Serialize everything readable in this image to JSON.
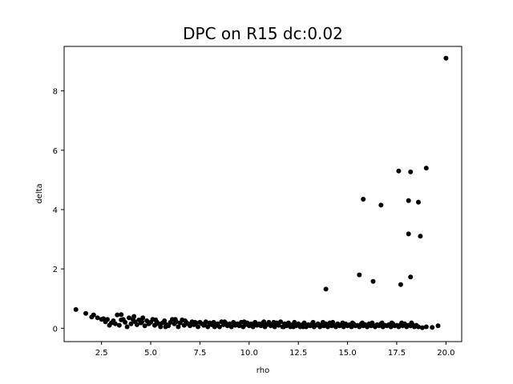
{
  "chart_data": {
    "type": "scatter",
    "title": "DPC on R15  dc:0.02",
    "xlabel": "rho",
    "ylabel": "delta",
    "xlim": [
      0.6,
      20.8
    ],
    "ylim": [
      -0.45,
      9.5
    ],
    "xticks": [
      2.5,
      5.0,
      7.5,
      10.0,
      12.5,
      15.0,
      17.5,
      20.0
    ],
    "xtick_labels": [
      "2.5",
      "5.0",
      "7.5",
      "10.0",
      "12.5",
      "15.0",
      "17.5",
      "20.0"
    ],
    "yticks": [
      0,
      2,
      4,
      6,
      8
    ],
    "ytick_labels": [
      "0",
      "2",
      "4",
      "6",
      "8"
    ],
    "grid": false,
    "marker_color": "#000000",
    "points": [
      [
        1.2,
        0.63
      ],
      [
        1.7,
        0.5
      ],
      [
        2.1,
        0.45
      ],
      [
        2.3,
        0.35
      ],
      [
        2.5,
        0.3
      ],
      [
        2.6,
        0.32
      ],
      [
        2.8,
        0.3
      ],
      [
        2.9,
        0.1
      ],
      [
        3.1,
        0.25
      ],
      [
        3.2,
        0.15
      ],
      [
        3.3,
        0.45
      ],
      [
        3.5,
        0.46
      ],
      [
        3.5,
        0.28
      ],
      [
        3.7,
        0.2
      ],
      [
        3.8,
        0.05
      ],
      [
        3.9,
        0.35
      ],
      [
        4.0,
        0.15
      ],
      [
        4.1,
        0.3
      ],
      [
        4.2,
        0.22
      ],
      [
        4.3,
        0.12
      ],
      [
        4.4,
        0.28
      ],
      [
        4.5,
        0.18
      ],
      [
        4.6,
        0.35
      ],
      [
        4.7,
        0.08
      ],
      [
        4.8,
        0.25
      ],
      [
        4.9,
        0.15
      ],
      [
        5.0,
        0.2
      ],
      [
        5.1,
        0.3
      ],
      [
        5.2,
        0.1
      ],
      [
        5.3,
        0.22
      ],
      [
        5.4,
        0.15
      ],
      [
        5.5,
        0.05
      ],
      [
        5.6,
        0.18
      ],
      [
        5.7,
        0.25
      ],
      [
        5.8,
        0.12
      ],
      [
        5.9,
        0.08
      ],
      [
        6.0,
        0.2
      ],
      [
        6.1,
        0.3
      ],
      [
        6.2,
        0.15
      ],
      [
        6.3,
        0.22
      ],
      [
        6.4,
        0.05
      ],
      [
        6.5,
        0.18
      ],
      [
        6.6,
        0.28
      ],
      [
        6.7,
        0.1
      ],
      [
        6.8,
        0.2
      ],
      [
        6.9,
        0.15
      ],
      [
        7.0,
        0.08
      ],
      [
        7.1,
        0.22
      ],
      [
        7.2,
        0.12
      ],
      [
        7.3,
        0.18
      ],
      [
        7.4,
        0.05
      ],
      [
        7.5,
        0.2
      ],
      [
        7.6,
        0.15
      ],
      [
        7.7,
        0.1
      ],
      [
        7.8,
        0.22
      ],
      [
        7.9,
        0.05
      ],
      [
        8.0,
        0.18
      ],
      [
        8.1,
        0.12
      ],
      [
        8.2,
        0.2
      ],
      [
        8.3,
        0.08
      ],
      [
        8.4,
        0.15
      ],
      [
        8.5,
        0.05
      ],
      [
        8.6,
        0.22
      ],
      [
        8.7,
        0.12
      ],
      [
        8.8,
        0.18
      ],
      [
        8.9,
        0.08
      ],
      [
        9.0,
        0.15
      ],
      [
        9.1,
        0.05
      ],
      [
        9.2,
        0.2
      ],
      [
        9.3,
        0.1
      ],
      [
        9.4,
        0.15
      ],
      [
        9.5,
        0.08
      ],
      [
        9.6,
        0.2
      ],
      [
        9.7,
        0.05
      ],
      [
        9.8,
        0.12
      ],
      [
        9.9,
        0.18
      ],
      [
        10.0,
        0.08
      ],
      [
        10.1,
        0.15
      ],
      [
        10.2,
        0.05
      ],
      [
        10.3,
        0.2
      ],
      [
        10.4,
        0.1
      ],
      [
        10.5,
        0.15
      ],
      [
        10.6,
        0.08
      ],
      [
        10.7,
        0.18
      ],
      [
        10.8,
        0.05
      ],
      [
        10.9,
        0.12
      ],
      [
        11.0,
        0.2
      ],
      [
        11.1,
        0.08
      ],
      [
        11.2,
        0.15
      ],
      [
        11.3,
        0.05
      ],
      [
        11.4,
        0.18
      ],
      [
        11.5,
        0.1
      ],
      [
        11.6,
        0.22
      ],
      [
        11.7,
        0.05
      ],
      [
        11.8,
        0.15
      ],
      [
        11.9,
        0.08
      ],
      [
        12.0,
        0.18
      ],
      [
        12.1,
        0.05
      ],
      [
        12.2,
        0.12
      ],
      [
        12.3,
        0.2
      ],
      [
        12.4,
        0.08
      ],
      [
        12.5,
        0.15
      ],
      [
        12.6,
        0.05
      ],
      [
        12.7,
        0.12
      ],
      [
        12.8,
        0.18
      ],
      [
        12.9,
        0.05
      ],
      [
        13.0,
        0.12
      ],
      [
        13.1,
        0.08
      ],
      [
        13.2,
        0.15
      ],
      [
        13.3,
        0.05
      ],
      [
        13.4,
        0.1
      ],
      [
        13.5,
        0.15
      ],
      [
        13.6,
        0.05
      ],
      [
        13.7,
        0.12
      ],
      [
        13.8,
        0.08
      ],
      [
        13.9,
        0.15
      ],
      [
        14.0,
        0.05
      ],
      [
        14.1,
        0.18
      ],
      [
        14.2,
        0.08
      ],
      [
        14.3,
        0.12
      ],
      [
        14.4,
        0.05
      ],
      [
        14.5,
        0.15
      ],
      [
        14.6,
        0.08
      ],
      [
        14.7,
        0.12
      ],
      [
        14.8,
        0.05
      ],
      [
        14.9,
        0.15
      ],
      [
        15.0,
        0.08
      ],
      [
        15.1,
        0.12
      ],
      [
        15.2,
        0.05
      ],
      [
        15.3,
        0.15
      ],
      [
        15.4,
        0.08
      ],
      [
        15.5,
        0.1
      ],
      [
        15.6,
        0.05
      ],
      [
        15.7,
        0.15
      ],
      [
        15.8,
        0.08
      ],
      [
        15.9,
        0.12
      ],
      [
        16.0,
        0.05
      ],
      [
        16.1,
        0.15
      ],
      [
        16.2,
        0.08
      ],
      [
        16.3,
        0.1
      ],
      [
        16.4,
        0.05
      ],
      [
        16.5,
        0.12
      ],
      [
        16.6,
        0.08
      ],
      [
        16.7,
        0.15
      ],
      [
        16.8,
        0.05
      ],
      [
        16.9,
        0.1
      ],
      [
        17.0,
        0.08
      ],
      [
        17.1,
        0.12
      ],
      [
        17.2,
        0.05
      ],
      [
        17.3,
        0.15
      ],
      [
        17.4,
        0.08
      ],
      [
        17.5,
        0.1
      ],
      [
        17.6,
        0.05
      ],
      [
        17.7,
        0.12
      ],
      [
        17.8,
        0.08
      ],
      [
        17.9,
        0.15
      ],
      [
        18.0,
        0.05
      ],
      [
        18.1,
        0.1
      ],
      [
        18.2,
        0.08
      ],
      [
        18.3,
        0.12
      ],
      [
        18.4,
        0.05
      ],
      [
        18.5,
        0.1
      ],
      [
        18.6,
        0.05
      ],
      [
        18.8,
        0.02
      ],
      [
        19.0,
        0.05
      ],
      [
        19.3,
        0.03
      ],
      [
        19.6,
        0.08
      ],
      [
        2.0,
        0.38
      ],
      [
        2.7,
        0.22
      ],
      [
        3.0,
        0.18
      ],
      [
        3.4,
        0.1
      ],
      [
        3.6,
        0.3
      ],
      [
        4.15,
        0.4
      ],
      [
        4.55,
        0.22
      ],
      [
        5.25,
        0.28
      ],
      [
        5.75,
        0.05
      ],
      [
        6.25,
        0.3
      ],
      [
        6.75,
        0.25
      ],
      [
        7.25,
        0.2
      ],
      [
        7.75,
        0.15
      ],
      [
        8.25,
        0.05
      ],
      [
        8.75,
        0.22
      ],
      [
        9.25,
        0.15
      ],
      [
        9.75,
        0.22
      ],
      [
        10.25,
        0.12
      ],
      [
        10.75,
        0.22
      ],
      [
        11.25,
        0.2
      ],
      [
        11.75,
        0.05
      ],
      [
        12.25,
        0.05
      ],
      [
        12.75,
        0.05
      ],
      [
        13.25,
        0.2
      ],
      [
        13.75,
        0.2
      ],
      [
        14.25,
        0.2
      ],
      [
        14.75,
        0.18
      ],
      [
        15.25,
        0.18
      ],
      [
        15.75,
        0.18
      ],
      [
        16.25,
        0.18
      ],
      [
        16.75,
        0.18
      ],
      [
        17.25,
        0.18
      ],
      [
        17.75,
        0.18
      ],
      [
        18.25,
        0.18
      ],
      [
        13.9,
        1.32
      ],
      [
        15.6,
        1.8
      ],
      [
        16.3,
        1.58
      ],
      [
        17.7,
        1.47
      ],
      [
        18.2,
        1.73
      ],
      [
        15.8,
        4.35
      ],
      [
        16.7,
        4.15
      ],
      [
        17.6,
        5.3
      ],
      [
        18.1,
        4.3
      ],
      [
        18.2,
        5.27
      ],
      [
        18.6,
        4.25
      ],
      [
        18.1,
        3.18
      ],
      [
        18.7,
        3.1
      ],
      [
        19.0,
        5.4
      ],
      [
        20.0,
        9.1
      ]
    ]
  }
}
